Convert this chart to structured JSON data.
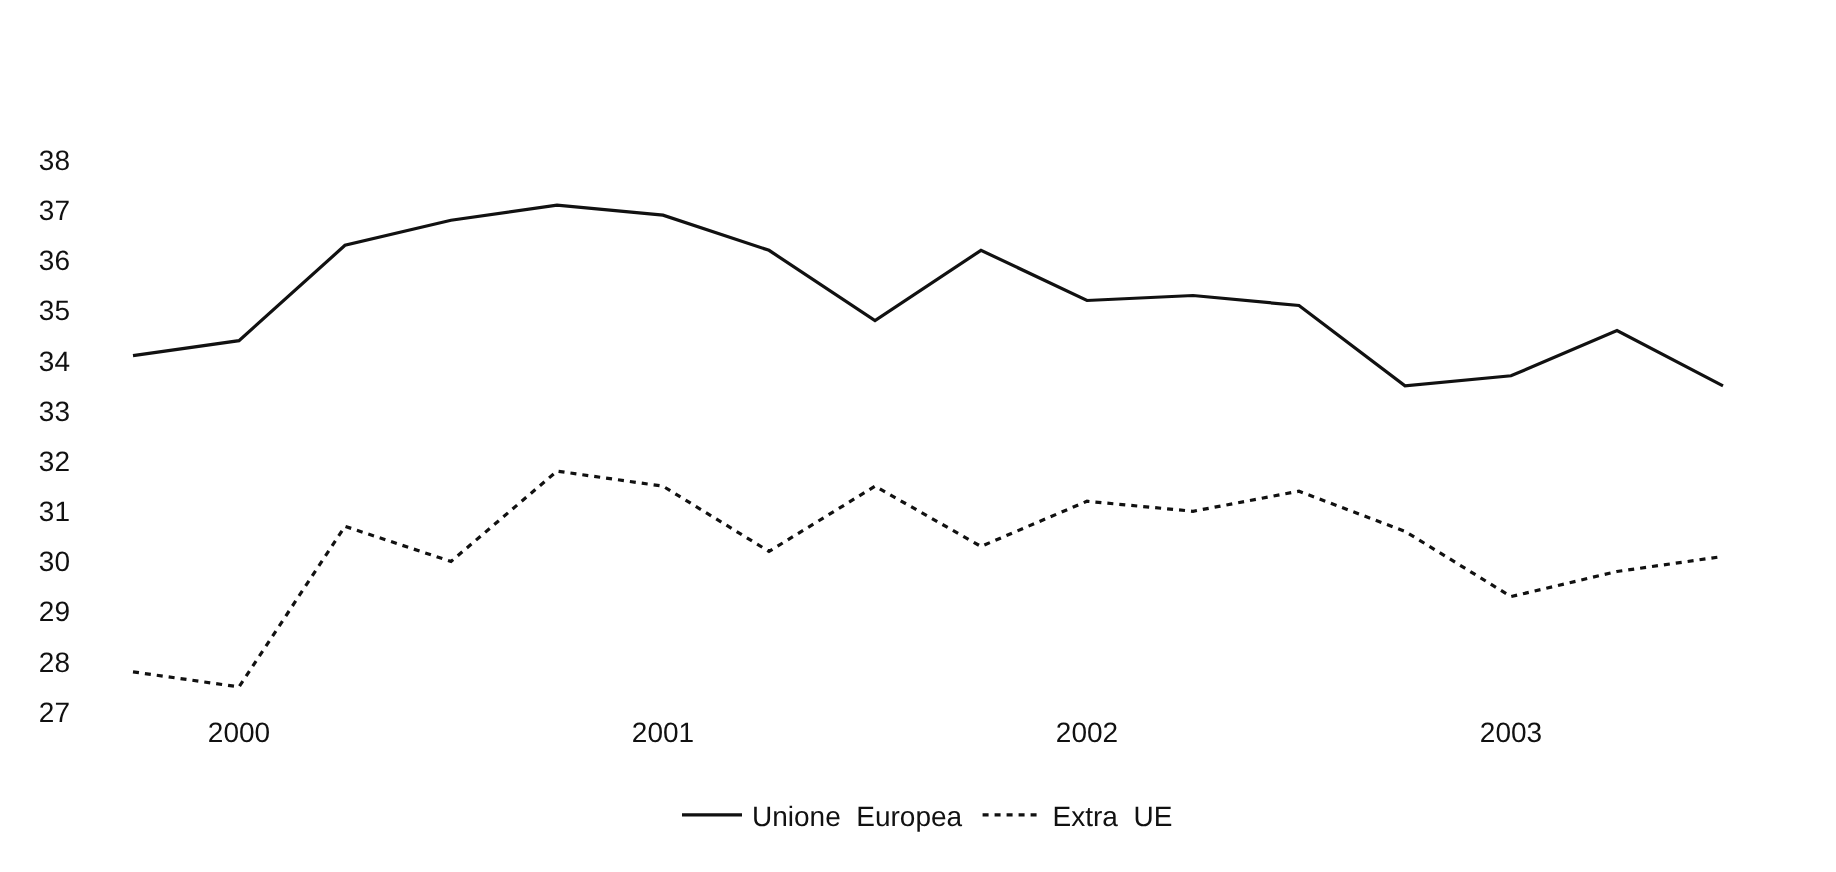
{
  "chart_data": {
    "type": "line",
    "categories": [
      null,
      "2000",
      null,
      null,
      null,
      "2001",
      null,
      null,
      null,
      "2002",
      null,
      null,
      null,
      "2003",
      null,
      null
    ],
    "series": [
      {
        "name": "Unione  Europea",
        "color": "#111111",
        "line_style": "solid",
        "values": [
          34.1,
          34.4,
          36.3,
          36.8,
          37.1,
          36.9,
          36.2,
          34.8,
          36.2,
          35.2,
          35.3,
          35.1,
          33.5,
          33.7,
          34.6,
          33.5
        ]
      },
      {
        "name": "Extra  UE",
        "color": "#111111",
        "line_style": "dotted",
        "values": [
          27.8,
          27.5,
          30.7,
          30.0,
          31.8,
          31.5,
          30.2,
          31.5,
          30.3,
          31.2,
          31.0,
          31.4,
          30.6,
          29.3,
          29.8,
          30.1
        ]
      }
    ],
    "ylim": [
      27,
      38
    ],
    "yticks": [
      27,
      28,
      29,
      30,
      31,
      32,
      33,
      34,
      35,
      36,
      37,
      38
    ],
    "legend": "bottom",
    "marker": "none"
  }
}
